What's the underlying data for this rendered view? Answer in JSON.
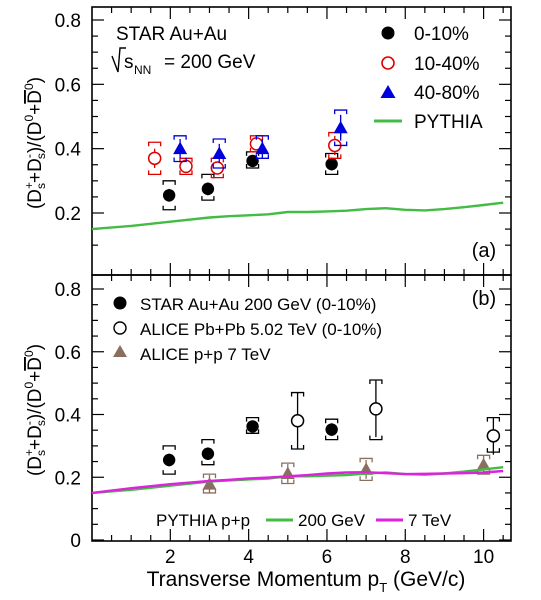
{
  "chart_data": [
    {
      "panel": "(a)",
      "type": "scatter",
      "annotations": {
        "collision": "STAR Au+Au",
        "energy_prefix": "s",
        "energy_sub": "NN",
        "energy_value": "= 200 GeV"
      },
      "ylabel": {
        "l1": "(D",
        "s": "s",
        "l2": "+D",
        "l3": ")/(D",
        "l4": "+",
        "l5": "D",
        "sup_plus": "+",
        "sup_minus": "-",
        "sup_zero": "0"
      },
      "ylim": [
        0,
        0.8
      ],
      "yticks": [
        "0.2",
        "0.4",
        "0.6",
        "0.8"
      ],
      "series": [
        {
          "name": "0-10%",
          "color": "#000000",
          "marker": "filled-circle",
          "points": [
            {
              "x": 1.97,
              "y": 0.255,
              "stat": 0.02,
              "sys": [
                0.21,
                0.3
              ]
            },
            {
              "x": 2.96,
              "y": 0.275,
              "stat": 0.02,
              "sys": [
                0.24,
                0.32
              ]
            },
            {
              "x": 4.1,
              "y": 0.362,
              "stat": 0.015,
              "sys": [
                0.34,
                0.39
              ]
            },
            {
              "x": 6.12,
              "y": 0.352,
              "stat": 0.02,
              "sys": [
                0.32,
                0.385
              ]
            }
          ]
        },
        {
          "name": "10-40%",
          "color": "#e00000",
          "marker": "open-circle",
          "points": [
            {
              "x": 1.6,
              "y": 0.37,
              "stat": 0.03,
              "sys": [
                0.32,
                0.42
              ]
            },
            {
              "x": 2.4,
              "y": 0.345,
              "stat": 0.02,
              "sys": [
                0.32,
                0.37
              ]
            },
            {
              "x": 3.2,
              "y": 0.34,
              "stat": 0.02,
              "sys": [
                0.31,
                0.37
              ]
            },
            {
              "x": 4.2,
              "y": 0.415,
              "stat": 0.02,
              "sys": [
                0.39,
                0.44
              ]
            },
            {
              "x": 6.2,
              "y": 0.41,
              "stat": 0.03,
              "sys": [
                0.37,
                0.45
              ]
            }
          ]
        },
        {
          "name": "40-80%",
          "color": "#0000dd",
          "marker": "filled-triangle",
          "points": [
            {
              "x": 2.25,
              "y": 0.4,
              "stat": 0.03,
              "sys": [
                0.36,
                0.44
              ]
            },
            {
              "x": 3.25,
              "y": 0.385,
              "stat": 0.03,
              "sys": [
                0.34,
                0.43
              ]
            },
            {
              "x": 4.35,
              "y": 0.4,
              "stat": 0.03,
              "sys": [
                0.37,
                0.44
              ]
            },
            {
              "x": 6.35,
              "y": 0.465,
              "stat": 0.04,
              "sys": [
                0.41,
                0.52
              ]
            }
          ]
        },
        {
          "name": "PYTHIA",
          "color": "#44bb44",
          "marker": "line",
          "x": [
            0,
            1,
            2,
            3,
            3.5,
            4,
            4.5,
            5,
            5.5,
            6,
            6.5,
            7,
            7.5,
            8,
            8.5,
            9,
            9.5,
            10,
            10.5
          ],
          "y": [
            0.15,
            0.16,
            0.173,
            0.186,
            0.19,
            0.193,
            0.196,
            0.203,
            0.203,
            0.205,
            0.207,
            0.212,
            0.215,
            0.21,
            0.208,
            0.212,
            0.218,
            0.225,
            0.232
          ]
        }
      ]
    },
    {
      "panel": "(b)",
      "type": "scatter",
      "xlabel": {
        "text": "Transverse Momentum p",
        "sub": "T",
        "unit": " (GeV/c)"
      },
      "xlim": [
        0,
        10.7
      ],
      "xticks": [
        "2",
        "4",
        "6",
        "8",
        "10"
      ],
      "ylim": [
        0,
        0.85
      ],
      "yticks": [
        "0",
        "0.2",
        "0.4",
        "0.6",
        "0.8"
      ],
      "legend_label": "PYTHIA p+p",
      "series": [
        {
          "name": "STAR Au+Au 200 GeV (0-10%)",
          "color": "#000000",
          "marker": "filled-circle",
          "points": [
            {
              "x": 1.97,
              "y": 0.255,
              "stat": 0.02,
              "sys": [
                0.21,
                0.3
              ]
            },
            {
              "x": 2.96,
              "y": 0.275,
              "stat": 0.02,
              "sys": [
                0.24,
                0.32
              ]
            },
            {
              "x": 4.1,
              "y": 0.362,
              "stat": 0.015,
              "sys": [
                0.34,
                0.39
              ]
            },
            {
              "x": 6.12,
              "y": 0.352,
              "stat": 0.02,
              "sys": [
                0.32,
                0.385
              ]
            }
          ]
        },
        {
          "name": "ALICE Pb+Pb 5.02 TeV (0-10%)",
          "color": "#000000",
          "marker": "open-circle",
          "points": [
            {
              "x": 5.25,
              "y": 0.38,
              "stat": 0.09,
              "sys": [
                0.29,
                0.47
              ]
            },
            {
              "x": 7.25,
              "y": 0.418,
              "stat": 0.09,
              "sys": [
                0.32,
                0.51
              ]
            },
            {
              "x": 10.25,
              "y": 0.332,
              "stat": 0.06,
              "sys": [
                0.28,
                0.39
              ]
            }
          ]
        },
        {
          "name": "ALICE p+p 7 TeV",
          "color": "#8b6f5e",
          "marker": "filled-triangle",
          "points": [
            {
              "x": 3.0,
              "y": 0.178,
              "stat": 0.03,
              "sys": [
                0.15,
                0.21
              ]
            },
            {
              "x": 5.0,
              "y": 0.212,
              "stat": 0.03,
              "sys": [
                0.18,
                0.245
              ]
            },
            {
              "x": 7.0,
              "y": 0.225,
              "stat": 0.03,
              "sys": [
                0.19,
                0.26
              ]
            },
            {
              "x": 10.0,
              "y": 0.24,
              "stat": 0.03,
              "sys": [
                0.21,
                0.27
              ]
            }
          ]
        },
        {
          "name": "200 GeV",
          "color": "#44bb44",
          "marker": "line",
          "x": [
            0,
            1,
            2,
            3,
            3.5,
            4,
            4.5,
            5,
            5.5,
            6,
            6.5,
            7,
            7.5,
            8,
            8.5,
            9,
            9.5,
            10,
            10.5
          ],
          "y": [
            0.15,
            0.16,
            0.173,
            0.186,
            0.19,
            0.193,
            0.196,
            0.203,
            0.203,
            0.205,
            0.207,
            0.212,
            0.215,
            0.21,
            0.208,
            0.212,
            0.218,
            0.225,
            0.232
          ]
        },
        {
          "name": "7 TeV",
          "color": "#dd22dd",
          "marker": "line",
          "x": [
            0,
            1,
            2,
            3,
            3.5,
            4,
            4.5,
            5,
            5.5,
            6,
            6.5,
            7,
            7.5,
            8,
            8.5,
            9,
            9.5,
            10,
            10.5
          ],
          "y": [
            0.15,
            0.165,
            0.178,
            0.188,
            0.192,
            0.196,
            0.199,
            0.203,
            0.207,
            0.212,
            0.215,
            0.216,
            0.213,
            0.21,
            0.211,
            0.212,
            0.213,
            0.215,
            0.22
          ]
        }
      ]
    }
  ]
}
